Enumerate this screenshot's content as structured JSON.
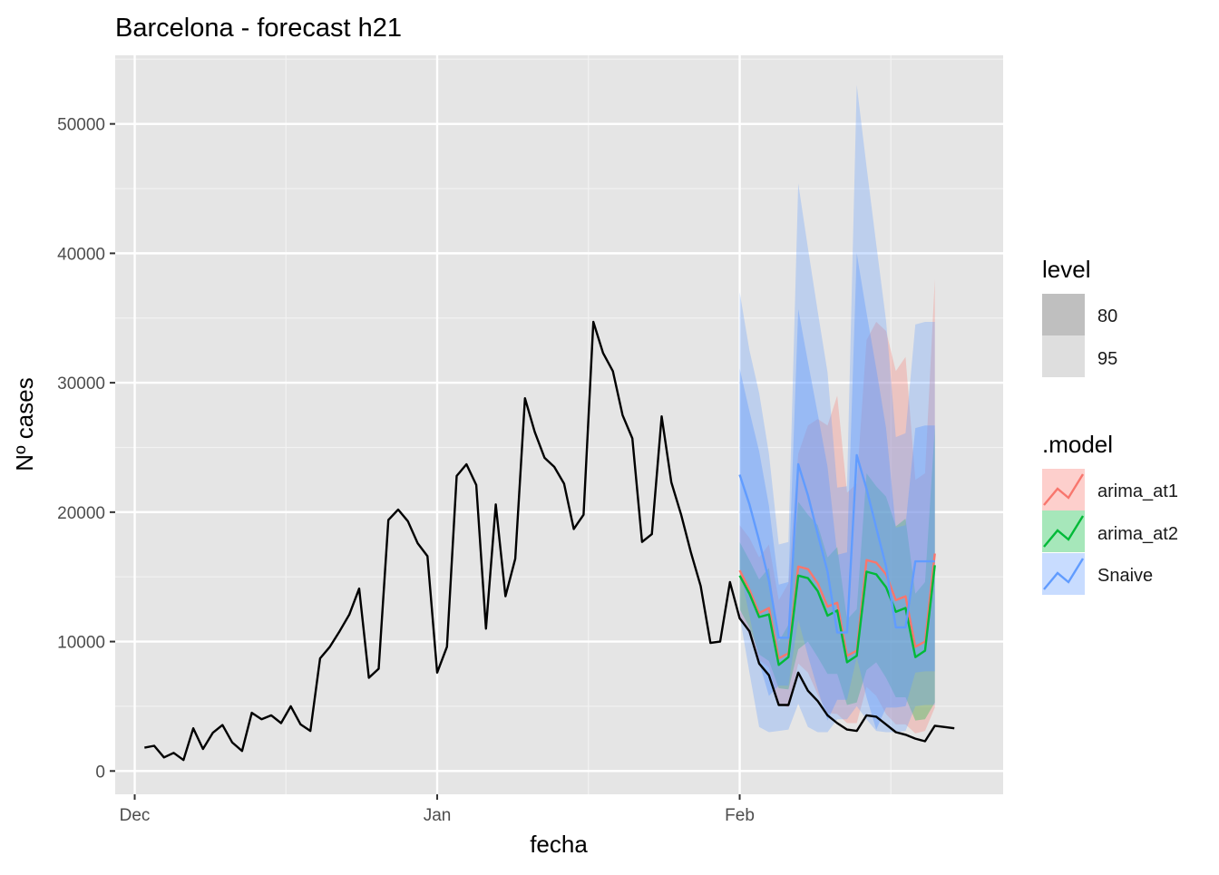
{
  "chart_data": {
    "type": "line",
    "title": "Barcelona - forecast h21",
    "xlabel": "fecha",
    "ylabel": "Nº cases",
    "ylim": [
      -1800,
      55300
    ],
    "xlim": [
      "2021-11-29",
      "2022-02-28"
    ],
    "grid": true,
    "x_ticks": [
      {
        "label": "Dec",
        "date": "2021-12-01"
      },
      {
        "label": "Jan",
        "date": "2022-01-01"
      },
      {
        "label": "Feb",
        "date": "2022-02-01"
      }
    ],
    "y_ticks": [
      0,
      10000,
      20000,
      30000,
      40000,
      50000
    ],
    "observed": {
      "start": "2021-12-02",
      "values": [
        1800,
        1950,
        1050,
        1400,
        850,
        3300,
        1700,
        2950,
        3550,
        2200,
        1550,
        4500,
        4000,
        4300,
        3700,
        5000,
        3600,
        3100,
        8700,
        9600,
        10800,
        12100,
        14100,
        7200,
        7900,
        19400,
        20200,
        19300,
        17600,
        16600,
        7600,
        9600,
        22800,
        23700,
        22100,
        11000,
        20600,
        13500,
        16400,
        28800,
        26200,
        24200,
        23500,
        22200,
        18700,
        19800,
        34700,
        32300,
        30900,
        27500,
        25700,
        17700,
        18300,
        27400,
        22300,
        19800,
        16900,
        14300,
        9900,
        10000,
        14600,
        11800,
        10800,
        8300,
        7400,
        5100,
        5100,
        7600,
        6200,
        5400,
        4300,
        3700,
        3200,
        3100,
        4300,
        4200,
        3600,
        3000,
        2800,
        2500,
        2300,
        3500,
        3400,
        3300
      ]
    },
    "forecast_start": "2022-02-01",
    "legend": {
      "position": "right",
      "level": {
        "title": "level",
        "entries": [
          "80",
          "95"
        ],
        "colors": [
          "#bfbfbf",
          "#dedede"
        ]
      },
      "model": {
        "title": ".model",
        "entries": [
          "arima_at1",
          "arima_at2",
          "Snaive"
        ],
        "colors": [
          "#f8766d",
          "#00ba38",
          "#619cff"
        ]
      }
    },
    "series": [
      {
        "name": "arima_at1",
        "color": "#f8766d",
        "values": [
          15500,
          14000,
          12200,
          12600,
          8700,
          9100,
          15800,
          15600,
          14500,
          12700,
          13000,
          8900,
          9300,
          16300,
          16100,
          15200,
          13200,
          13500,
          9600,
          10000,
          16800
        ],
        "lo95": [
          12000,
          10500,
          8600,
          8000,
          5200,
          4900,
          8300,
          7600,
          5900,
          4500,
          4400,
          3700,
          3700,
          6500,
          5800,
          4400,
          3600,
          3600,
          2900,
          3100,
          4900
        ],
        "hi95": [
          19000,
          18000,
          16500,
          17500,
          13200,
          14500,
          24500,
          26700,
          27200,
          26700,
          29000,
          21500,
          22200,
          33300,
          34700,
          34000,
          30900,
          32000,
          22500,
          23000,
          38000
        ]
      },
      {
        "name": "arima_at2",
        "color": "#00ba38",
        "values": [
          15100,
          13700,
          11900,
          12100,
          8200,
          8800,
          15100,
          14900,
          13900,
          12000,
          12400,
          8400,
          8900,
          15400,
          15200,
          14200,
          12300,
          12600,
          8800,
          9300,
          15900
        ],
        "lo95": [
          12500,
          11100,
          9000,
          8500,
          6400,
          6300,
          9400,
          10000,
          8800,
          7500,
          7500,
          5100,
          5300,
          7800,
          8400,
          7200,
          5700,
          5700,
          3900,
          4000,
          5300
        ],
        "hi95": [
          17700,
          16300,
          14800,
          15700,
          10000,
          11300,
          20800,
          19800,
          19000,
          16500,
          17300,
          11700,
          12500,
          23000,
          22000,
          21200,
          18900,
          19500,
          13700,
          14600,
          26500
        ]
      },
      {
        "name": "Snaive",
        "color": "#619cff",
        "values": [
          22900,
          20600,
          17800,
          14700,
          10300,
          10300,
          23700,
          21300,
          18300,
          15400,
          10700,
          10700,
          24400,
          21800,
          18800,
          15800,
          11100,
          11100,
          16200,
          16200,
          16200
        ],
        "lo80": [
          15600,
          12000,
          8400,
          5800,
          6600,
          6600,
          11700,
          8900,
          6300,
          3900,
          5500,
          5500,
          8800,
          5700,
          3200,
          4900,
          4900,
          5000,
          7600,
          7700,
          7700
        ],
        "hi80": [
          31100,
          27800,
          24700,
          20500,
          14400,
          14600,
          35700,
          31600,
          27600,
          23500,
          16700,
          16900,
          40000,
          35400,
          31100,
          26500,
          18800,
          19000,
          26500,
          26700,
          26700
        ],
        "lo95": [
          12000,
          7600,
          3400,
          3000,
          3100,
          3200,
          5200,
          3400,
          3000,
          3000,
          4000,
          4000,
          5000,
          4000,
          3100,
          3000,
          3000,
          3100,
          5000,
          5100,
          5100
        ],
        "hi95": [
          37000,
          32500,
          29200,
          24500,
          17500,
          17700,
          45400,
          40400,
          35500,
          30800,
          21900,
          22000,
          53000,
          46700,
          40700,
          34800,
          25800,
          26100,
          34500,
          34700,
          34700
        ]
      }
    ]
  }
}
